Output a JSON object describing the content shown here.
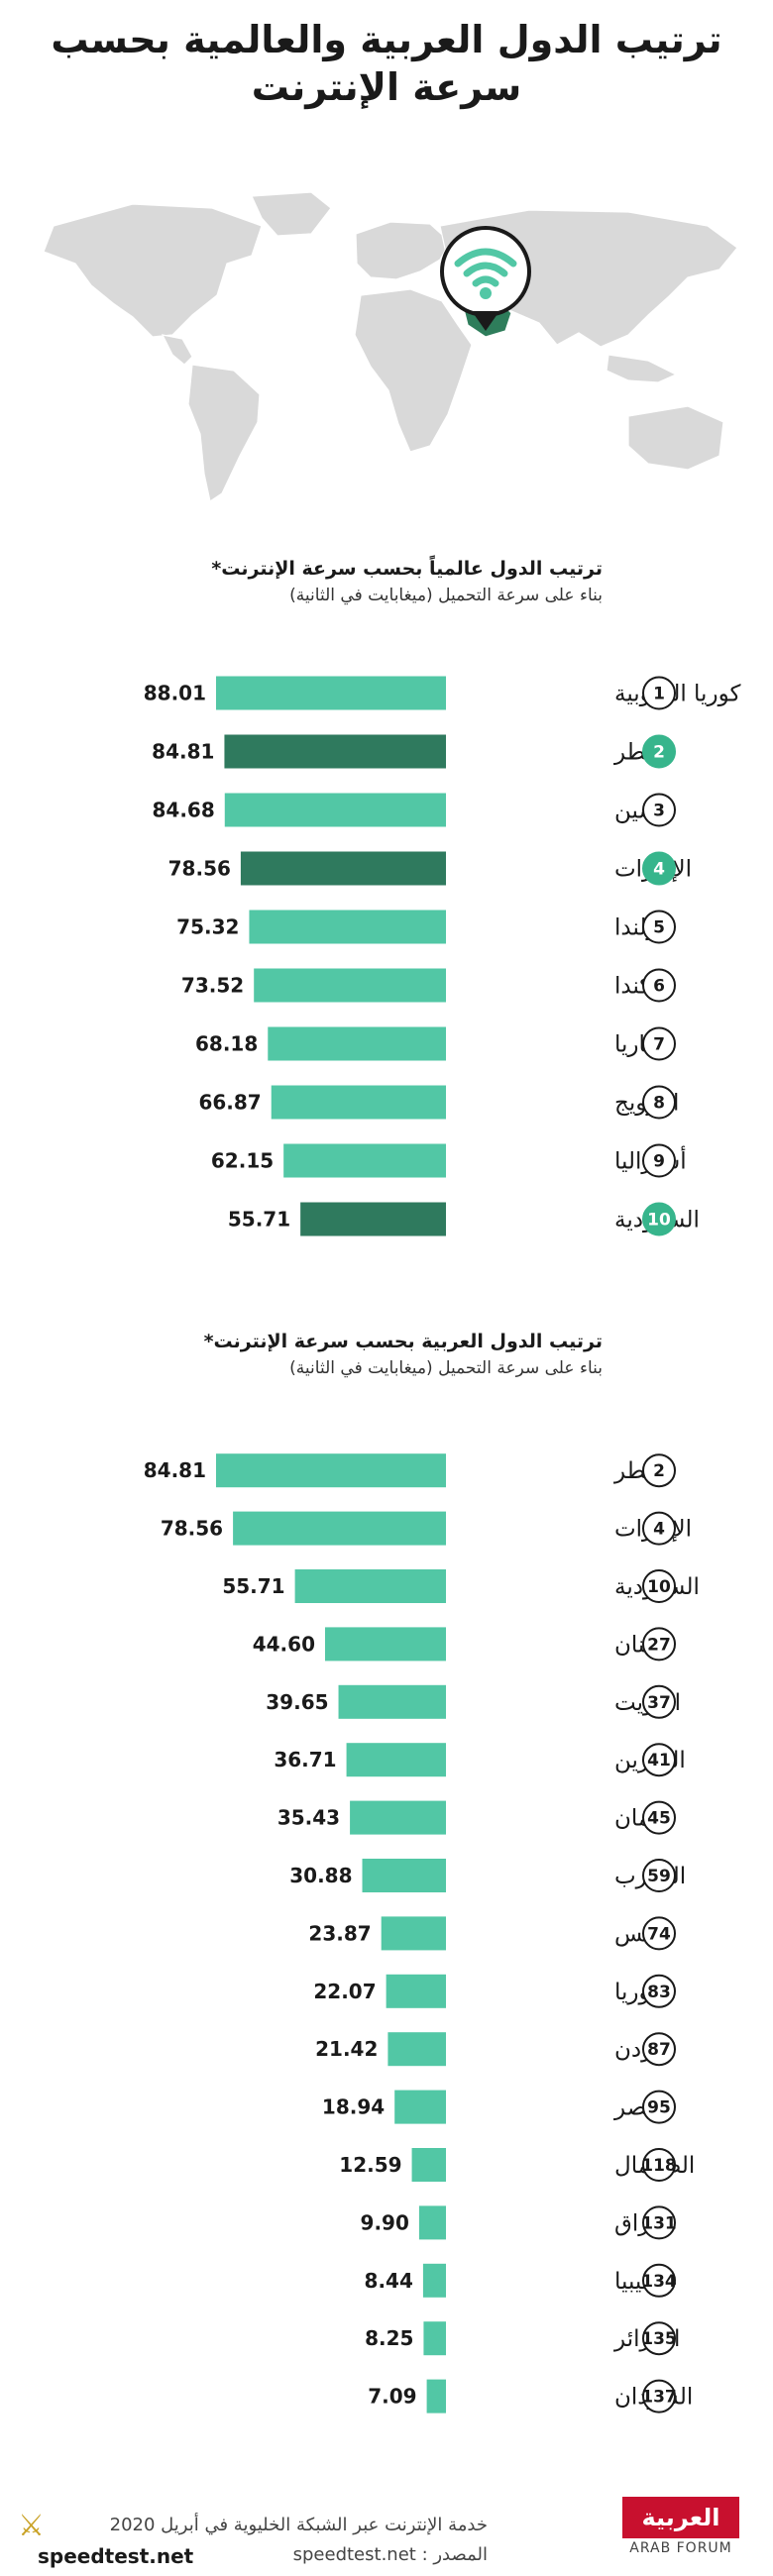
{
  "page": {
    "title": "ترتيب الدول العربية والعالمية بحسب سرعة الإنترنت"
  },
  "map": {
    "highlight_color": "#2e7d5b",
    "wifi_color": "#52c7a5"
  },
  "colors": {
    "bar": "#52c7a5",
    "bar_arab": "#2f7a5e",
    "rank_fill_arab": "#37b58c"
  },
  "global_section": {
    "title": "ترتيب الدول عالمياً بحسب سرعة الإنترنت*",
    "subtitle": "بناء على سرعة التحميل (ميغابايت في الثانية)"
  },
  "arab_section": {
    "title": "ترتيب الدول العربية بحسب سرعة الإنترنت*",
    "subtitle": "بناء على سرعة التحميل (ميغابايت في الثانية)"
  },
  "chart_data": [
    {
      "type": "bar",
      "orientation": "horizontal",
      "title": "ترتيب الدول عالمياً بحسب سرعة الإنترنت*",
      "subtitle": "بناء على سرعة التحميل (ميغابايت في الثانية)",
      "categories": [
        "كوريا الجنوبية",
        "قطر",
        "الصين",
        "الإمارات",
        "هولندا",
        "كندا",
        "بلغاريا",
        "النرويج",
        "أستراليا",
        "السعودية"
      ],
      "ranks": [
        "1",
        "2",
        "3",
        "4",
        "5",
        "6",
        "7",
        "8",
        "9",
        "10"
      ],
      "values": [
        88.01,
        84.81,
        84.68,
        78.56,
        75.32,
        73.52,
        68.18,
        66.87,
        62.15,
        55.71
      ],
      "value_labels": [
        "88.01",
        "84.81",
        "84.68",
        "78.56",
        "75.32",
        "73.52",
        "68.18",
        "66.87",
        "62.15",
        "55.71"
      ],
      "highlighted": [
        false,
        true,
        false,
        true,
        false,
        false,
        false,
        false,
        false,
        true
      ],
      "xlim": [
        0,
        88.01
      ]
    },
    {
      "type": "bar",
      "orientation": "horizontal",
      "title": "ترتيب الدول العربية بحسب سرعة الإنترنت*",
      "subtitle": "بناء على سرعة التحميل (ميغابايت في الثانية)",
      "categories": [
        "قطر",
        "الإمارات",
        "السعودية",
        "لبنان",
        "الكويت",
        "البحرين",
        "عُمان",
        "المغرب",
        "تونس",
        "سوريا",
        "الأردن",
        "مصر",
        "الصومال",
        "العراق",
        "ليبيا",
        "الجزائر",
        "السودان"
      ],
      "ranks": [
        "2",
        "4",
        "10",
        "27",
        "37",
        "41",
        "45",
        "59",
        "74",
        "83",
        "87",
        "95",
        "118",
        "131",
        "134",
        "135",
        "137"
      ],
      "values": [
        84.81,
        78.56,
        55.71,
        44.6,
        39.65,
        36.71,
        35.43,
        30.88,
        23.87,
        22.07,
        21.42,
        18.94,
        12.59,
        9.9,
        8.44,
        8.25,
        7.09
      ],
      "value_labels": [
        "84.81",
        "78.56",
        "55.71",
        "44.60",
        "39.65",
        "36.71",
        "35.43",
        "30.88",
        "23.87",
        "22.07",
        "21.42",
        "18.94",
        "12.59",
        "9.90",
        "8.44",
        "8.25",
        "7.09"
      ],
      "xlim": [
        0,
        84.81
      ]
    }
  ],
  "footer": {
    "line": "خدمة الإنترنت عبر الشبكة الخليوية في أبريل 2020",
    "source": "المصدر : speedtest.net"
  },
  "logo": {
    "main": "العربية",
    "sub": "ARAB FORUM"
  },
  "watermark": {
    "text": "speedtest.net"
  }
}
